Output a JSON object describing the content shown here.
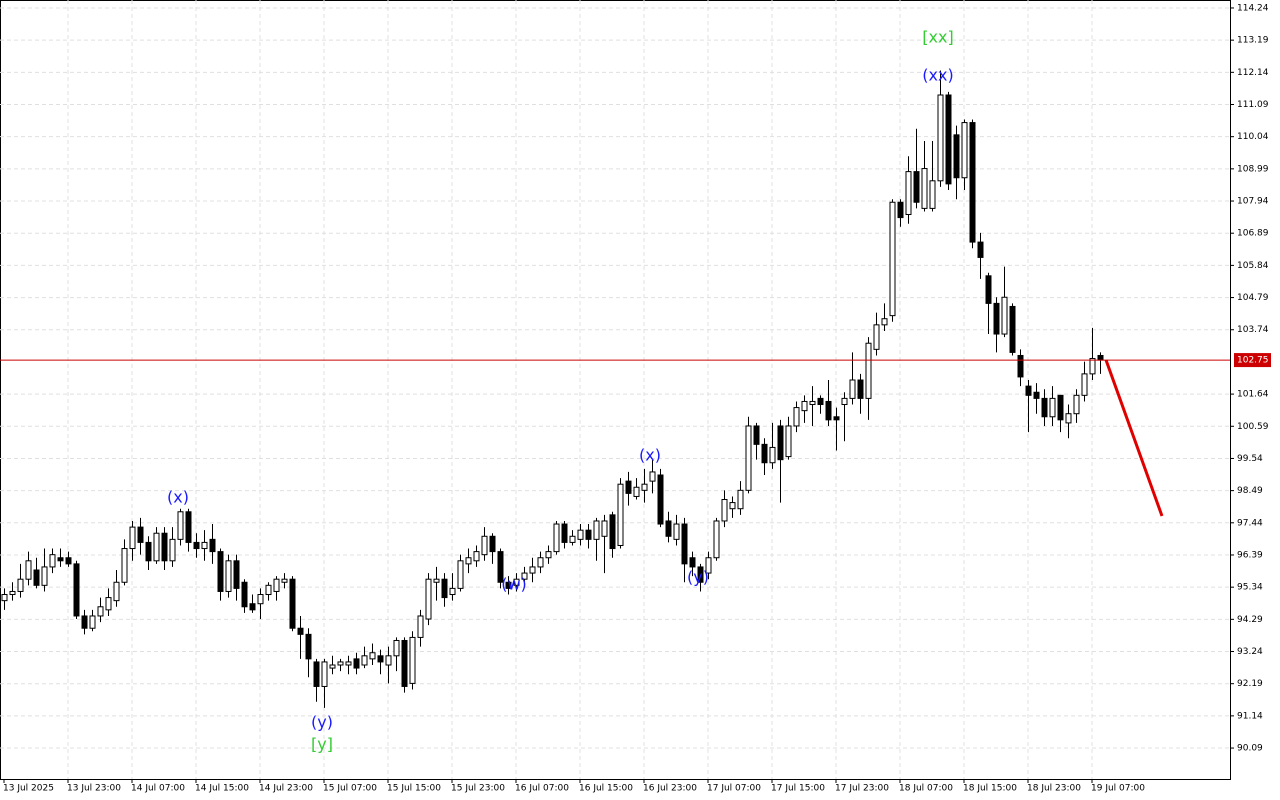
{
  "chart_data": {
    "type": "candlestick",
    "ylim": [
      89.08,
      114.5
    ],
    "yticks": [
      114.24,
      113.19,
      112.14,
      111.09,
      110.04,
      108.99,
      107.94,
      106.89,
      105.84,
      104.79,
      103.74,
      101.64,
      100.59,
      99.54,
      98.49,
      97.44,
      96.39,
      95.34,
      94.29,
      93.24,
      92.19,
      91.14,
      90.09
    ],
    "xticks": [
      {
        "value": 0,
        "label": "13 Jul 2025"
      },
      {
        "value": 8,
        "label": "13 Jul 23:00"
      },
      {
        "value": 16,
        "label": "14 Jul 07:00"
      },
      {
        "value": 24,
        "label": "14 Jul 15:00"
      },
      {
        "value": 32,
        "label": "14 Jul 23:00"
      },
      {
        "value": 40,
        "label": "15 Jul 07:00"
      },
      {
        "value": 48,
        "label": "15 Jul 15:00"
      },
      {
        "value": 56,
        "label": "15 Jul 23:00"
      },
      {
        "value": 64,
        "label": "16 Jul 07:00"
      },
      {
        "value": 72,
        "label": "16 Jul 15:00"
      },
      {
        "value": 80,
        "label": "16 Jul 23:00"
      },
      {
        "value": 88,
        "label": "17 Jul 07:00"
      },
      {
        "value": 96,
        "label": "17 Jul 15:00"
      },
      {
        "value": 104,
        "label": "17 Jul 23:00"
      },
      {
        "value": 112,
        "label": "18 Jul 07:00"
      },
      {
        "value": 120,
        "label": "18 Jul 15:00"
      },
      {
        "value": 128,
        "label": "18 Jul 23:00"
      },
      {
        "value": 136,
        "label": "19 Jul 07:00"
      }
    ],
    "grid": true,
    "bull_color": "#ffffff",
    "bear_color": "#000000",
    "open": [
      94.9,
      95.1,
      95.2,
      95.6,
      95.9,
      95.4,
      96.0,
      96.3,
      96.3,
      96.1,
      94.4,
      94.0,
      94.4,
      94.6,
      94.9,
      95.5,
      96.6,
      97.3,
      96.8,
      96.2,
      97.1,
      96.2,
      96.9,
      97.8,
      96.8,
      96.6,
      96.9,
      96.5,
      95.2,
      96.2,
      95.5,
      94.8,
      94.8,
      95.1,
      95.2,
      95.5,
      95.6,
      94.0,
      93.8,
      92.9,
      92.1,
      92.7,
      92.8,
      92.8,
      93.0,
      92.8,
      93.0,
      93.1,
      92.8,
      93.1,
      93.6,
      92.2,
      93.7,
      94.3,
      95.5,
      95.6,
      95.1,
      95.3,
      96.1,
      96.2,
      96.4,
      97.0,
      96.5,
      95.5,
      95.4,
      95.6,
      95.8,
      96.0,
      96.3,
      96.5,
      97.4,
      96.8,
      96.9,
      97.2,
      96.9,
      97.0,
      97.7,
      96.7,
      98.8,
      98.3,
      98.5,
      98.8,
      99.0,
      97.5,
      96.9,
      97.4,
      96.3,
      96.0,
      95.8,
      96.3,
      97.5,
      97.9,
      97.9,
      98.5,
      100.6,
      100.0,
      99.4,
      100.6,
      99.6,
      100.6,
      101.1,
      101.3,
      101.5,
      101.4,
      100.9,
      101.3,
      101.5,
      102.1,
      101.5,
      103.1,
      103.9,
      104.2,
      107.9,
      107.5,
      108.9,
      107.7,
      107.7,
      108.6,
      111.4,
      110.1,
      108.7,
      110.5,
      106.6,
      105.5,
      104.6,
      103.6,
      104.5,
      102.9,
      101.9,
      101.7,
      101.5,
      100.9,
      101.6,
      100.7,
      101.0,
      101.6,
      102.3,
      102.9
    ],
    "high": [
      95.3,
      95.5,
      96.1,
      96.5,
      96.3,
      96.6,
      96.6,
      96.6,
      96.5,
      96.2,
      94.6,
      94.6,
      95.0,
      95.3,
      95.9,
      96.9,
      97.5,
      97.6,
      97.0,
      97.3,
      97.3,
      97.3,
      97.9,
      97.9,
      97.1,
      97.2,
      97.4,
      96.6,
      96.4,
      96.4,
      95.6,
      95.1,
      95.3,
      95.5,
      95.7,
      95.8,
      95.7,
      94.4,
      94.0,
      93.0,
      93.0,
      93.1,
      93.0,
      93.1,
      93.2,
      93.4,
      93.5,
      93.3,
      93.4,
      93.7,
      93.7,
      93.9,
      94.6,
      95.8,
      96.0,
      95.8,
      95.8,
      96.4,
      96.6,
      96.7,
      97.3,
      97.1,
      96.6,
      95.7,
      95.8,
      96.0,
      96.3,
      96.5,
      96.7,
      97.5,
      97.5,
      97.2,
      97.4,
      97.4,
      97.6,
      97.7,
      97.8,
      98.9,
      99.1,
      98.9,
      99.2,
      99.5,
      99.2,
      97.8,
      97.7,
      97.6,
      96.5,
      96.1,
      96.5,
      97.6,
      98.5,
      98.3,
      98.8,
      100.9,
      100.7,
      100.2,
      100.7,
      100.8,
      100.9,
      101.4,
      101.6,
      101.9,
      101.6,
      102.1,
      101.2,
      101.7,
      103.0,
      102.3,
      103.5,
      104.3,
      104.6,
      108.0,
      108.0,
      109.4,
      110.3,
      109.9,
      109.9,
      112.2,
      111.5,
      110.4,
      110.6,
      110.6,
      106.9,
      105.6,
      104.8,
      105.8,
      104.6,
      103.1,
      102.1,
      102.0,
      101.8,
      101.9,
      101.6,
      101.3,
      101.8,
      102.7,
      103.8,
      103.0
    ],
    "low": [
      94.6,
      94.9,
      95.0,
      95.4,
      95.3,
      95.2,
      95.8,
      96.0,
      96.0,
      94.3,
      93.8,
      93.9,
      94.2,
      94.4,
      94.7,
      95.4,
      96.2,
      96.4,
      95.9,
      96.1,
      95.9,
      96.0,
      96.7,
      96.5,
      96.3,
      96.2,
      96.1,
      94.9,
      95.0,
      94.9,
      94.5,
      94.5,
      94.3,
      94.9,
      94.9,
      95.3,
      93.9,
      93.0,
      92.4,
      91.6,
      91.4,
      92.5,
      92.6,
      92.5,
      92.5,
      92.7,
      92.8,
      92.5,
      92.2,
      92.6,
      91.9,
      92.0,
      93.4,
      94.1,
      94.9,
      94.7,
      94.9,
      95.2,
      95.8,
      96.0,
      96.2,
      96.1,
      95.3,
      95.1,
      95.2,
      95.5,
      95.5,
      95.8,
      96.1,
      96.4,
      96.6,
      96.7,
      96.7,
      96.6,
      96.2,
      95.8,
      96.3,
      96.6,
      98.0,
      98.2,
      98.1,
      98.4,
      97.3,
      96.8,
      96.7,
      95.5,
      95.7,
      95.2,
      95.6,
      96.2,
      97.3,
      97.6,
      97.7,
      98.4,
      99.5,
      99.0,
      99.2,
      98.1,
      99.5,
      100.4,
      100.7,
      100.6,
      101.0,
      100.6,
      99.8,
      100.1,
      101.3,
      101.0,
      100.8,
      102.9,
      103.7,
      104.0,
      107.1,
      107.2,
      107.7,
      107.6,
      107.6,
      108.4,
      108.3,
      108.0,
      108.3,
      106.4,
      105.4,
      103.6,
      103.0,
      103.5,
      102.9,
      101.9,
      100.4,
      101.0,
      100.6,
      100.6,
      100.4,
      100.2,
      100.7,
      101.4,
      102.1,
      102.3
    ],
    "close": [
      95.1,
      95.2,
      95.6,
      96.2,
      95.4,
      96.0,
      96.4,
      96.2,
      96.1,
      94.4,
      94.0,
      94.4,
      94.7,
      95.0,
      95.5,
      96.6,
      97.3,
      96.8,
      96.2,
      97.1,
      96.2,
      96.9,
      97.8,
      96.8,
      96.6,
      96.8,
      96.5,
      95.2,
      96.2,
      95.3,
      94.7,
      94.6,
      95.1,
      95.4,
      95.6,
      95.6,
      94.0,
      93.8,
      93.0,
      92.1,
      92.9,
      92.8,
      92.9,
      92.9,
      92.7,
      93.1,
      93.2,
      92.9,
      93.1,
      93.6,
      92.1,
      93.7,
      94.4,
      95.6,
      95.6,
      95.0,
      95.3,
      96.2,
      96.3,
      96.5,
      97.0,
      96.5,
      95.5,
      95.3,
      95.6,
      95.8,
      96.0,
      96.3,
      96.5,
      97.4,
      96.8,
      97.0,
      97.2,
      96.9,
      97.5,
      97.5,
      96.6,
      98.7,
      98.4,
      98.6,
      98.7,
      99.1,
      97.4,
      97.0,
      97.4,
      96.1,
      96.0,
      95.5,
      96.3,
      97.5,
      98.2,
      98.1,
      98.5,
      100.6,
      100.0,
      99.4,
      99.9,
      99.5,
      100.6,
      101.2,
      101.4,
      101.4,
      101.3,
      100.8,
      100.8,
      101.5,
      102.1,
      101.5,
      103.3,
      103.9,
      104.1,
      107.9,
      107.4,
      108.9,
      107.9,
      109.0,
      108.6,
      111.4,
      108.5,
      108.7,
      110.5,
      106.6,
      106.1,
      104.6,
      103.6,
      104.8,
      103.0,
      102.2,
      101.6,
      101.5,
      100.9,
      101.5,
      100.8,
      101.0,
      101.6,
      102.3,
      102.8,
      102.75
    ],
    "current_price": 102.75,
    "current_price_color": "#cc0000",
    "annotations": [
      {
        "text": "[xx]",
        "color": "#33cc33"
      },
      {
        "text": "(xx)",
        "color": "#1a1aff"
      },
      {
        "text": "(x)",
        "color": "#1a1aff"
      },
      {
        "text": "(y)",
        "color": "#1a1aff"
      },
      {
        "text": "[y]",
        "color": "#33cc33"
      },
      {
        "text": "(w)",
        "color": "#1a1aff"
      },
      {
        "text": "(x)",
        "color": "#1a1aff"
      },
      {
        "text": "(y)",
        "color": "#1a1aff"
      }
    ]
  }
}
